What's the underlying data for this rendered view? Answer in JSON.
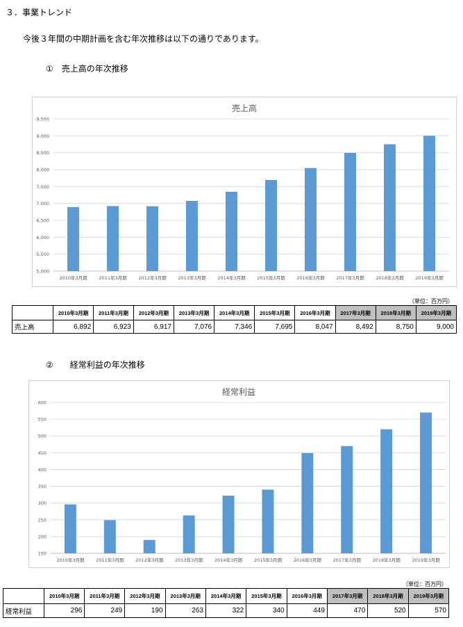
{
  "section_title": "３．事業トレンド",
  "intro": "今後３年間の中期計画を含む年次推移は以下の通りであります。",
  "chart1_heading": "①　売上高の年次推移",
  "chart2_heading": "②　　経常利益の年次推移",
  "unit_label": "（単位：百万円）",
  "colors": {
    "bar": "#5B9BD5",
    "grid": "#d9d9d9",
    "shade": "#bfbfbf"
  },
  "periods": [
    "2010年3月期",
    "2011年3月期",
    "2012年3月期",
    "2013年3月期",
    "2014年3月期",
    "2015年3月期",
    "2016年3月期",
    "2017年3月期",
    "2018年3月期",
    "2019年3月期"
  ],
  "plan_periods": [
    "2017年3月期",
    "2018年3月期",
    "2019年3月期"
  ],
  "table1": {
    "row_label": "売上高",
    "values": [
      "6,892",
      "6,923",
      "6,917",
      "7,076",
      "7,346",
      "7,695",
      "8,047",
      "8,492",
      "8,750",
      "9,000"
    ]
  },
  "table2": {
    "row_label": "経常利益",
    "values": [
      "296",
      "249",
      "190",
      "263",
      "322",
      "340",
      "449",
      "470",
      "520",
      "570"
    ]
  },
  "chart_data": [
    {
      "type": "bar",
      "title": "売上高",
      "categories": [
        "2010年3月期",
        "2011年3月期",
        "2012年3月期",
        "2013年3月期",
        "2014年3月期",
        "2015年3月期",
        "2016年3月期",
        "2017年3月期",
        "2018年3月期",
        "2019年3月期"
      ],
      "values": [
        6892,
        6923,
        6917,
        7076,
        7346,
        7695,
        8047,
        8492,
        8750,
        9000
      ],
      "ylim": [
        5000,
        9500
      ],
      "yticks": [
        5000,
        5500,
        6000,
        6500,
        7000,
        7500,
        8000,
        8500,
        9000,
        9500
      ],
      "ytick_labels": [
        "5,000",
        "5,500",
        "6,000",
        "6,500",
        "7,000",
        "7,500",
        "8,000",
        "8,500",
        "9,000",
        "9,500"
      ],
      "grid": true,
      "xlabel": "",
      "ylabel": ""
    },
    {
      "type": "bar",
      "title": "経常利益",
      "categories": [
        "2010年3月期",
        "2011年3月期",
        "2012年3月期",
        "2013年3月期",
        "2014年3月期",
        "2015年3月期",
        "2016年3月期",
        "2017年3月期",
        "2018年3月期",
        "2019年3月期"
      ],
      "values": [
        296,
        249,
        190,
        263,
        322,
        340,
        449,
        470,
        520,
        570
      ],
      "ylim": [
        150,
        600
      ],
      "yticks": [
        150,
        200,
        250,
        300,
        350,
        400,
        450,
        500,
        550,
        600
      ],
      "ytick_labels": [
        "150",
        "200",
        "250",
        "300",
        "350",
        "400",
        "450",
        "500",
        "550",
        "600"
      ],
      "grid": true,
      "xlabel": "",
      "ylabel": ""
    }
  ]
}
